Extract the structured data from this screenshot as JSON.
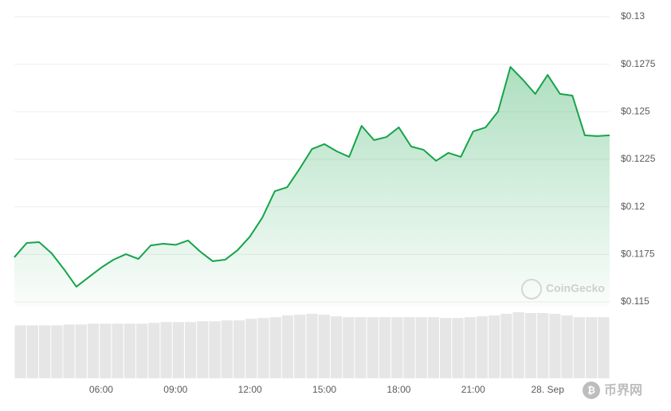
{
  "chart_data": {
    "type": "line",
    "x": [
      2.5,
      3,
      3.5,
      4,
      4.5,
      5,
      5.5,
      6,
      6.5,
      7,
      7.5,
      8,
      8.5,
      9,
      9.5,
      10,
      10.5,
      11,
      11.5,
      12,
      12.5,
      13,
      13.5,
      14,
      14.5,
      15,
      15.5,
      16,
      16.5,
      17,
      17.5,
      18,
      18.5,
      19,
      19.5,
      20,
      20.5,
      21,
      21.5,
      22,
      22.5,
      23,
      23.5,
      24,
      24.5,
      25,
      25.5,
      26,
      26.5
    ],
    "values": [
      0.11735,
      0.1181,
      0.11814,
      0.11756,
      0.11672,
      0.1158,
      0.1163,
      0.1168,
      0.11722,
      0.11751,
      0.11726,
      0.11797,
      0.11806,
      0.118,
      0.11823,
      0.11764,
      0.11714,
      0.11722,
      0.11772,
      0.11844,
      0.11944,
      0.12082,
      0.12103,
      0.122,
      0.12304,
      0.1233,
      0.12292,
      0.12263,
      0.12426,
      0.12351,
      0.12367,
      0.12418,
      0.12317,
      0.123,
      0.12242,
      0.12284,
      0.12263,
      0.12397,
      0.12418,
      0.12501,
      0.12736,
      0.12669,
      0.12594,
      0.12694,
      0.12594,
      0.12585,
      0.12376,
      0.12372,
      0.12376
    ],
    "volumes": [
      65,
      65,
      65,
      65,
      66,
      66,
      67,
      67,
      67,
      67,
      67,
      68,
      69,
      69,
      69,
      70,
      70,
      71,
      71,
      73,
      74,
      75,
      77,
      78,
      79,
      78,
      76,
      75,
      75,
      75,
      75,
      75,
      75,
      75,
      75,
      74,
      74,
      75,
      76,
      77,
      79,
      81,
      80,
      80,
      79,
      77,
      75,
      75,
      75
    ],
    "color": "#16a34a",
    "xlim": [
      2.5,
      26.5
    ],
    "xticks": [
      {
        "value": 6,
        "label": "06:00"
      },
      {
        "value": 9,
        "label": "09:00"
      },
      {
        "value": 12,
        "label": "12:00"
      },
      {
        "value": 15,
        "label": "15:00"
      },
      {
        "value": 18,
        "label": "18:00"
      },
      {
        "value": 21,
        "label": "21:00"
      },
      {
        "value": 24,
        "label": "28. Sep"
      }
    ],
    "ylim": [
      0.115,
      0.13
    ],
    "yticks": [
      {
        "value": 0.115,
        "label": "$0.115"
      },
      {
        "value": 0.1175,
        "label": "$0.1175"
      },
      {
        "value": 0.12,
        "label": "$0.12"
      },
      {
        "value": 0.1225,
        "label": "$0.1225"
      },
      {
        "value": 0.125,
        "label": "$0.125"
      },
      {
        "value": 0.1275,
        "label": "$0.1275"
      },
      {
        "value": 0.13,
        "label": "$0.13"
      }
    ],
    "grid": true,
    "watermark": "CoinGecko",
    "site_logo": "币界网"
  }
}
